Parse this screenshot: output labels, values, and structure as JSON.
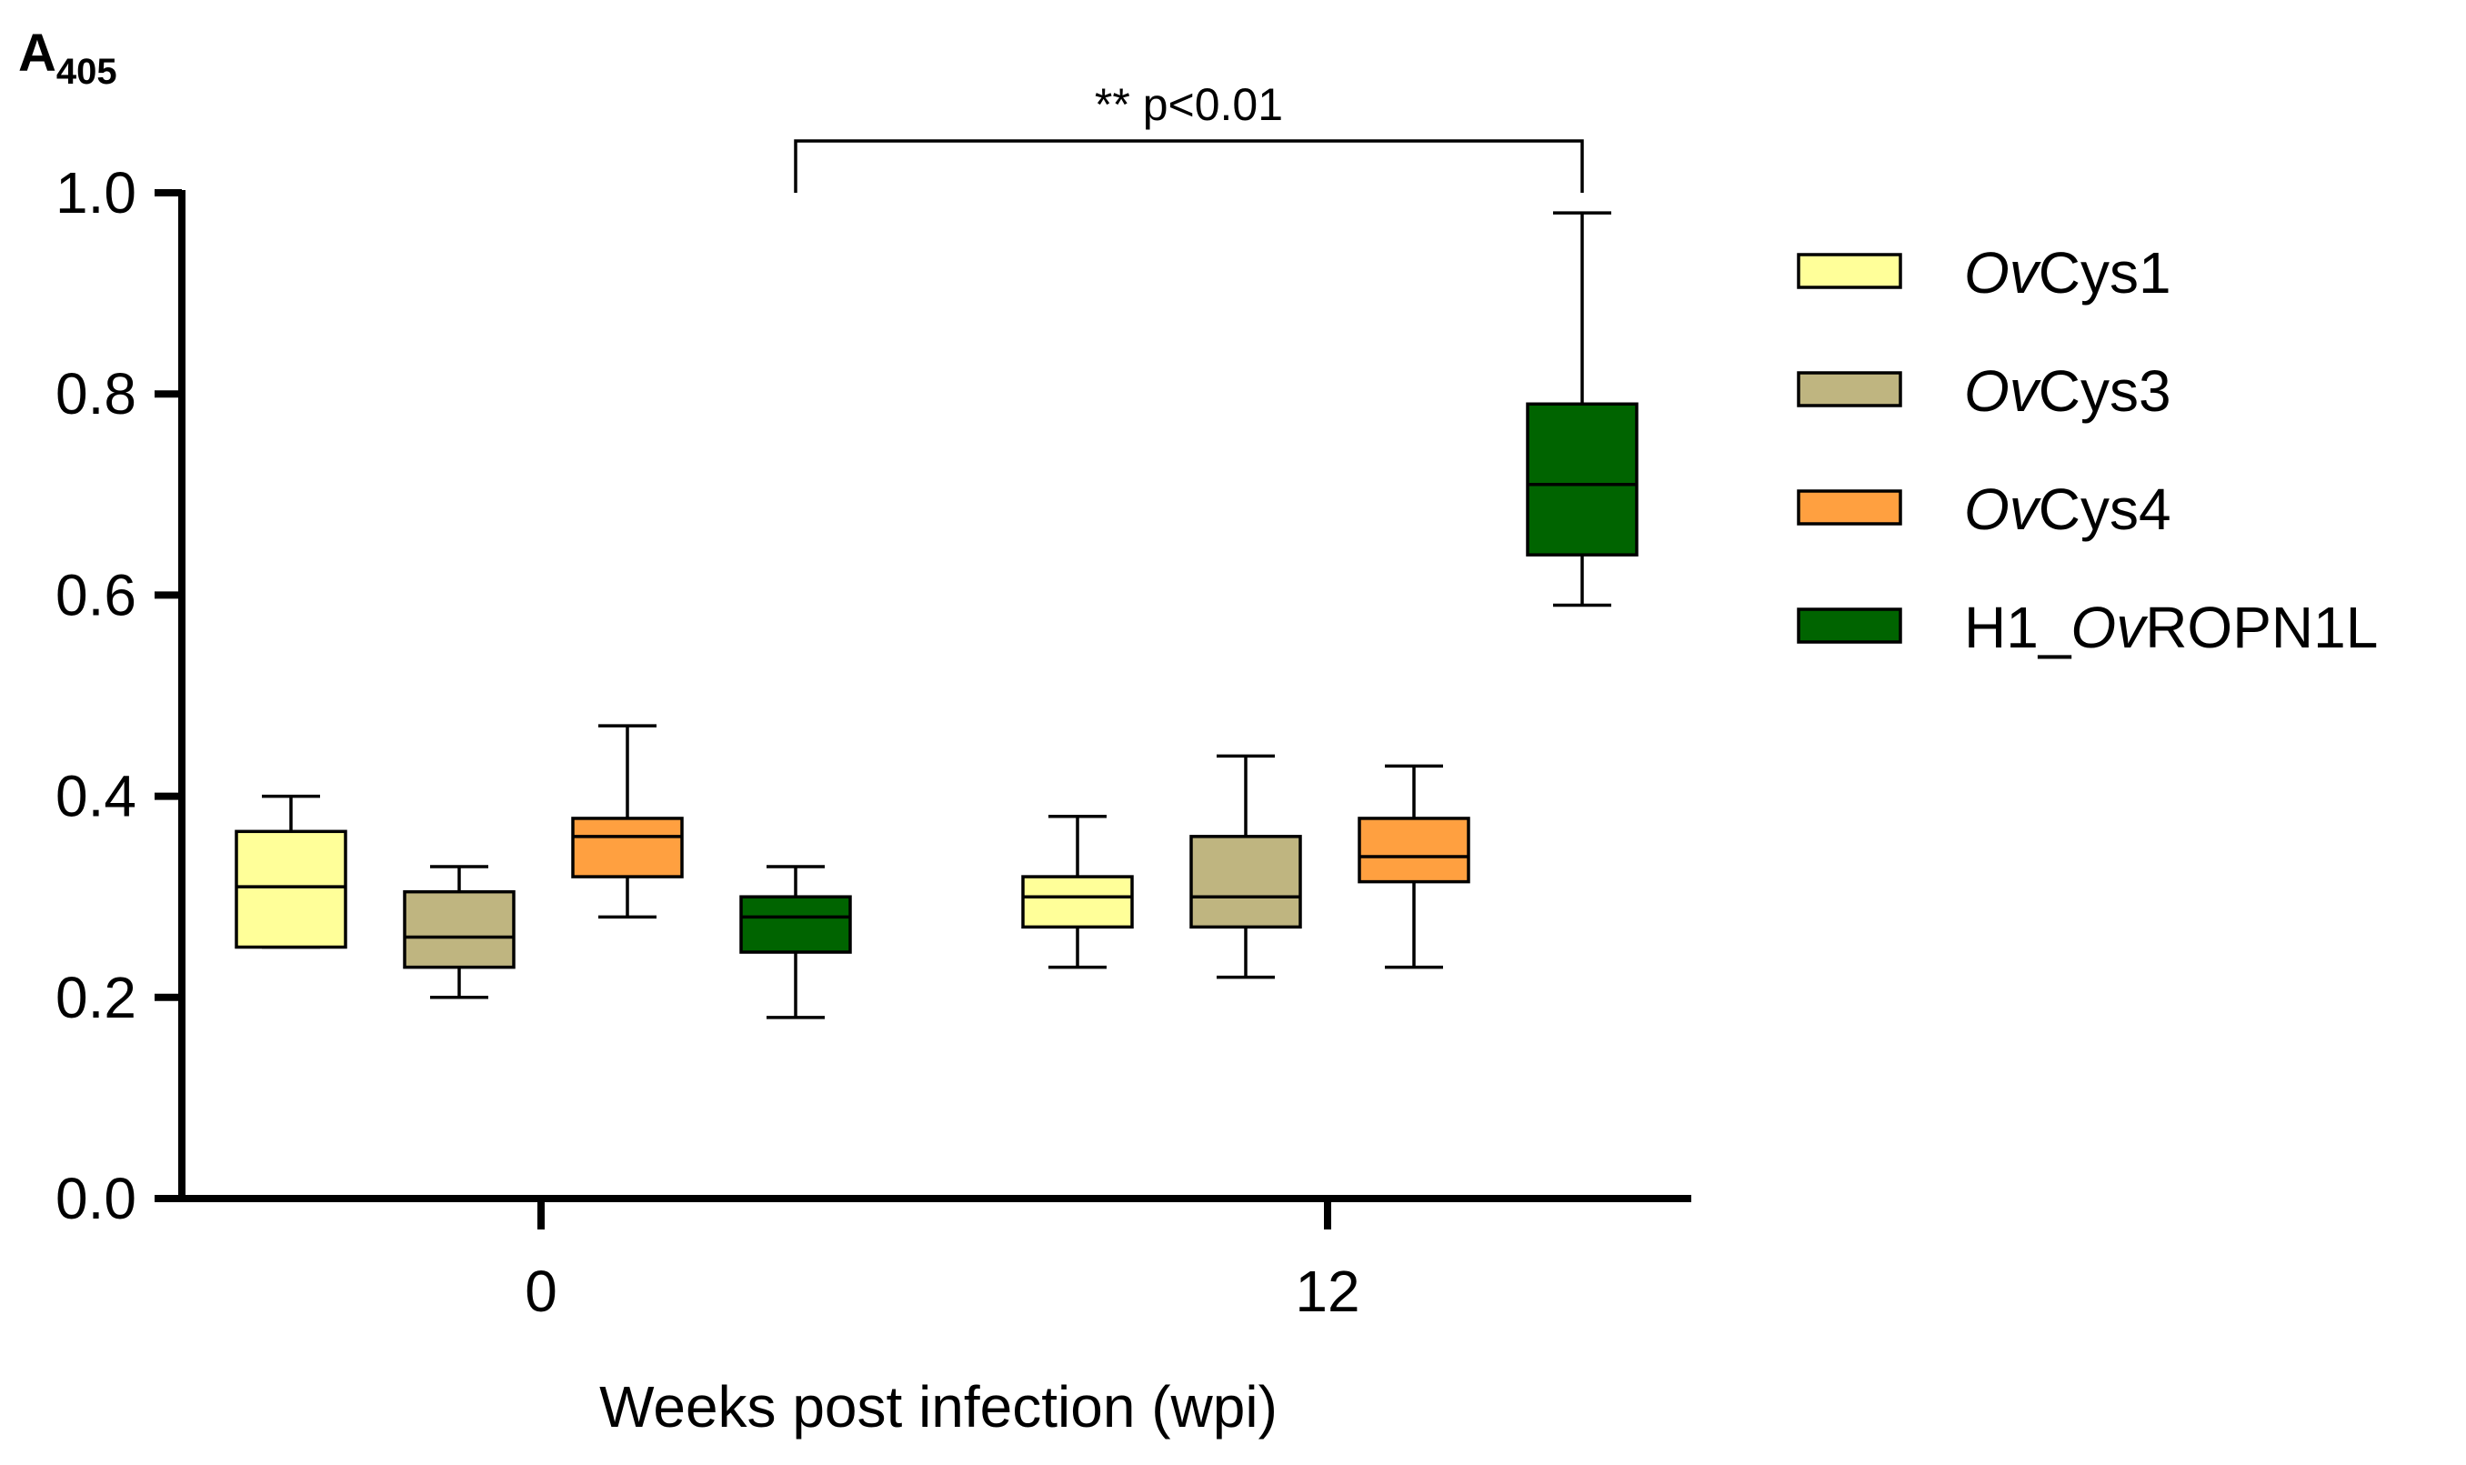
{
  "chart_data": {
    "type": "box",
    "title": "",
    "ylabel_main": "A",
    "ylabel_sub": "405",
    "xlabel": "Weeks post infection (wpi)",
    "ylim": [
      0,
      1.0
    ],
    "yticks": [
      0.0,
      0.2,
      0.4,
      0.6,
      0.8,
      1.0
    ],
    "ytick_labels": [
      "0.0",
      "0.2",
      "0.4",
      "0.6",
      "0.8",
      "1.0"
    ],
    "categories": [
      "0",
      "12"
    ],
    "series": [
      {
        "name": "OvCys1",
        "legend_italic": "Ov",
        "legend_rest": "Cys1",
        "color": "#ffff99",
        "boxes": [
          {
            "category": "0",
            "min": 0.25,
            "q1": 0.25,
            "median": 0.31,
            "q3": 0.365,
            "max": 0.4
          },
          {
            "category": "12",
            "min": 0.23,
            "q1": 0.27,
            "median": 0.3,
            "q3": 0.32,
            "max": 0.38
          }
        ]
      },
      {
        "name": "OvCys3",
        "legend_italic": "Ov",
        "legend_rest": "Cys3",
        "color": "#bfb580",
        "boxes": [
          {
            "category": "0",
            "min": 0.2,
            "q1": 0.23,
            "median": 0.26,
            "q3": 0.305,
            "max": 0.33
          },
          {
            "category": "12",
            "min": 0.22,
            "q1": 0.27,
            "median": 0.3,
            "q3": 0.36,
            "max": 0.44
          }
        ]
      },
      {
        "name": "OvCys4",
        "legend_italic": "Ov",
        "legend_rest": "Cys4",
        "color": "#ffa040",
        "boxes": [
          {
            "category": "0",
            "min": 0.28,
            "q1": 0.32,
            "median": 0.36,
            "q3": 0.378,
            "max": 0.47
          },
          {
            "category": "12",
            "min": 0.23,
            "q1": 0.315,
            "median": 0.34,
            "q3": 0.378,
            "max": 0.43
          }
        ]
      },
      {
        "name": "H1_OvROPN1L",
        "legend_prefix": "H1_",
        "legend_italic": "Ov",
        "legend_rest": "ROPN1L",
        "color": "#006400",
        "boxes": [
          {
            "category": "0",
            "min": 0.18,
            "q1": 0.245,
            "median": 0.28,
            "q3": 0.3,
            "max": 0.33
          },
          {
            "category": "12",
            "min": 0.59,
            "q1": 0.64,
            "median": 0.71,
            "q3": 0.79,
            "max": 0.98
          }
        ]
      }
    ],
    "annotation": {
      "text": "** p<0.01",
      "from": {
        "series": "H1_OvROPN1L",
        "category": "0"
      },
      "to": {
        "series": "H1_OvROPN1L",
        "category": "12"
      }
    },
    "legend_position": "right"
  }
}
